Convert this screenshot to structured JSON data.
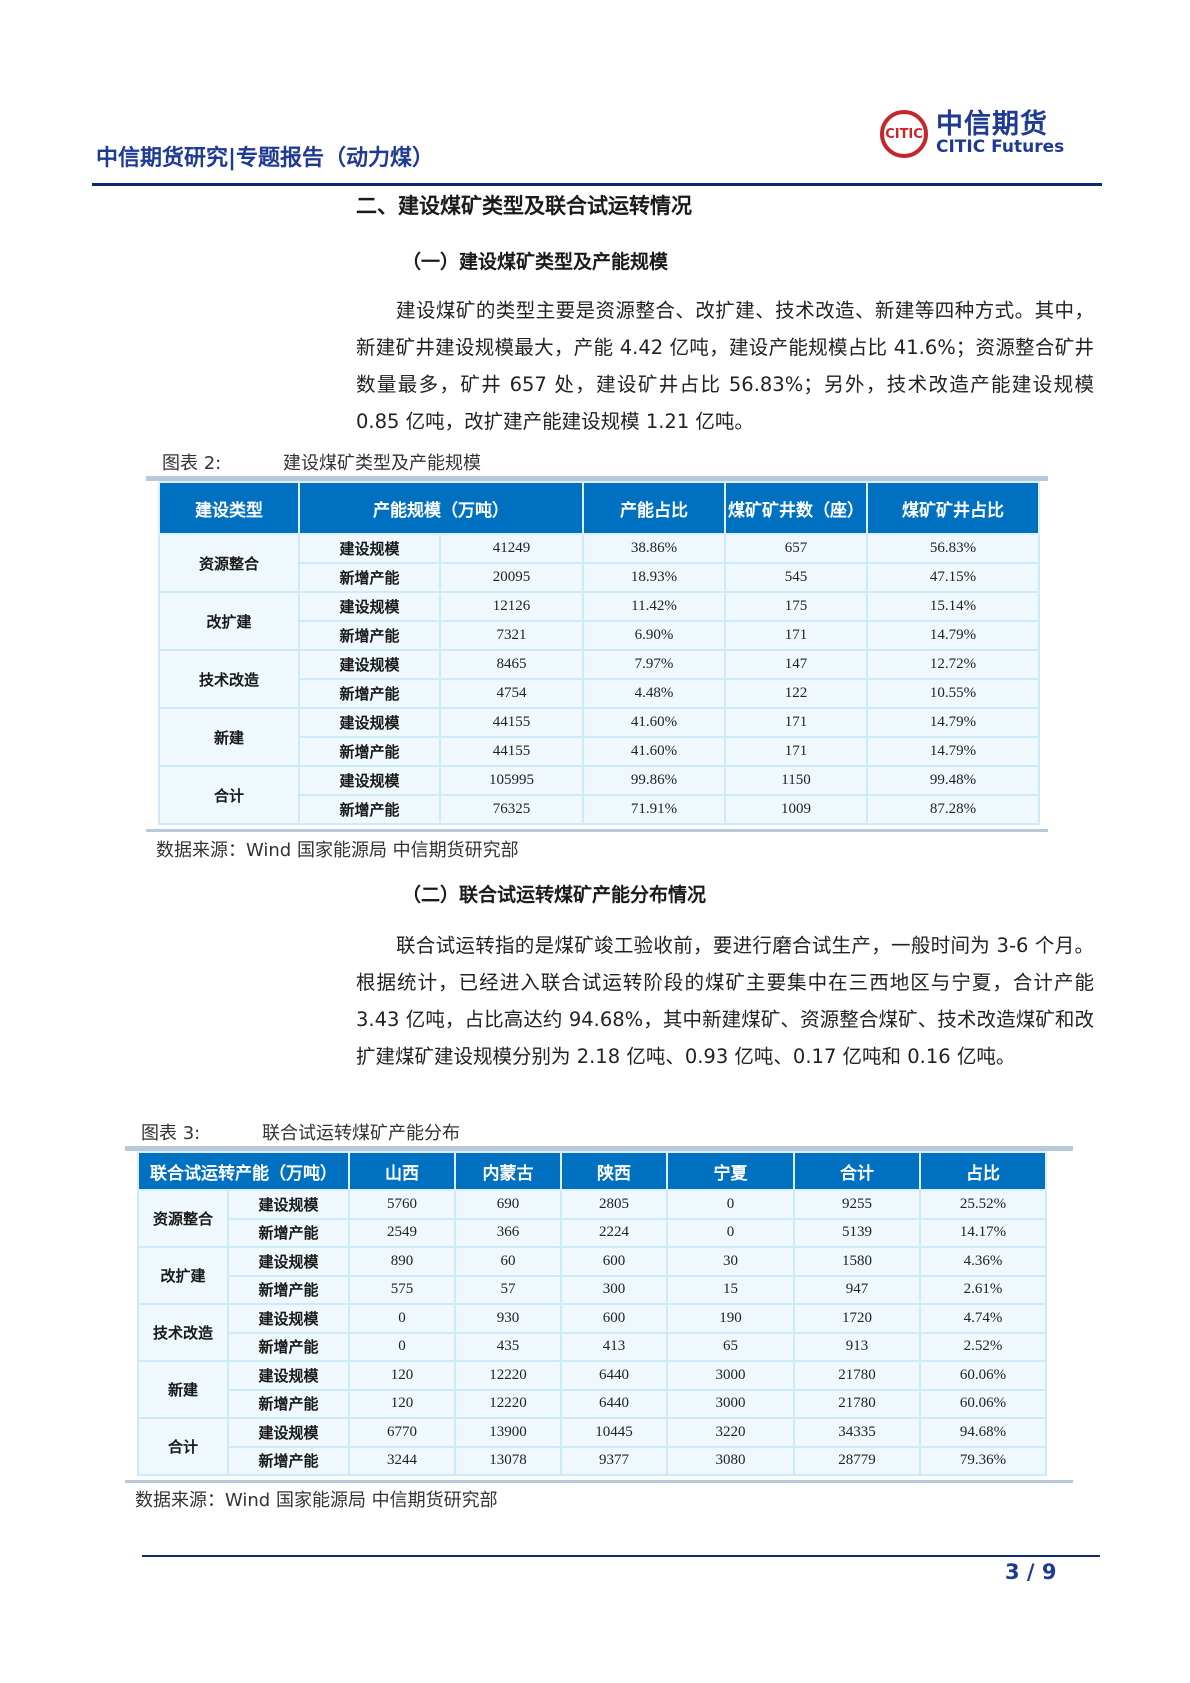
{
  "header": {
    "title": "中信期货研究|专题报告（动力煤）",
    "logo_cn": "中信期货",
    "logo_en": "CITIC Futures"
  },
  "section_title": "二、建设煤矿类型及联合试运转情况",
  "sub1": {
    "title": "（一）建设煤矿类型及产能规模",
    "para": "建设煤矿的类型主要是资源整合、改扩建、技术改造、新建等四种方式。其中，新建矿井建设规模最大，产能 4.42 亿吨，建设产能规模占比 41.6%；资源整合矿井数量最多，矿井 657 处，建设矿井占比 56.83%；另外，技术改造产能建设规模 0.85 亿吨，改扩建产能建设规模 1.21 亿吨。"
  },
  "table1": {
    "caption_no": "图表 2:",
    "caption": "建设煤矿类型及产能规模",
    "headers": [
      "建设类型",
      "产能规模（万吨）",
      "产能占比",
      "煤矿矿井数（座）",
      "煤矿矿井占比"
    ],
    "groups": [
      {
        "name": "资源整合",
        "rows": [
          [
            "建设规模",
            "41249",
            "38.86%",
            "657",
            "56.83%"
          ],
          [
            "新增产能",
            "20095",
            "18.93%",
            "545",
            "47.15%"
          ]
        ]
      },
      {
        "name": "改扩建",
        "rows": [
          [
            "建设规模",
            "12126",
            "11.42%",
            "175",
            "15.14%"
          ],
          [
            "新增产能",
            "7321",
            "6.90%",
            "171",
            "14.79%"
          ]
        ]
      },
      {
        "name": "技术改造",
        "rows": [
          [
            "建设规模",
            "8465",
            "7.97%",
            "147",
            "12.72%"
          ],
          [
            "新增产能",
            "4754",
            "4.48%",
            "122",
            "10.55%"
          ]
        ]
      },
      {
        "name": "新建",
        "rows": [
          [
            "建设规模",
            "44155",
            "41.60%",
            "171",
            "14.79%"
          ],
          [
            "新增产能",
            "44155",
            "41.60%",
            "171",
            "14.79%"
          ]
        ]
      },
      {
        "name": "合计",
        "rows": [
          [
            "建设规模",
            "105995",
            "99.86%",
            "1150",
            "99.48%"
          ],
          [
            "新增产能",
            "76325",
            "71.91%",
            "1009",
            "87.28%"
          ]
        ]
      }
    ],
    "source": "数据来源：Wind  国家能源局  中信期货研究部"
  },
  "sub2": {
    "title": "（二）联合试运转煤矿产能分布情况",
    "para": "联合试运转指的是煤矿竣工验收前，要进行磨合试生产，一般时间为 3-6 个月。根据统计，已经进入联合试运转阶段的煤矿主要集中在三西地区与宁夏，合计产能 3.43 亿吨，占比高达约 94.68%，其中新建煤矿、资源整合煤矿、技术改造煤矿和改扩建煤矿建设规模分别为 2.18 亿吨、0.93 亿吨、0.17 亿吨和 0.16 亿吨。"
  },
  "table2": {
    "caption_no": "图表 3:",
    "caption": "联合试运转煤矿产能分布",
    "headers": [
      "联合试运转产能（万吨）",
      "山西",
      "内蒙古",
      "陕西",
      "宁夏",
      "合计",
      "占比"
    ],
    "groups": [
      {
        "name": "资源整合",
        "rows": [
          [
            "建设规模",
            "5760",
            "690",
            "2805",
            "0",
            "9255",
            "25.52%"
          ],
          [
            "新增产能",
            "2549",
            "366",
            "2224",
            "0",
            "5139",
            "14.17%"
          ]
        ]
      },
      {
        "name": "改扩建",
        "rows": [
          [
            "建设规模",
            "890",
            "60",
            "600",
            "30",
            "1580",
            "4.36%"
          ],
          [
            "新增产能",
            "575",
            "57",
            "300",
            "15",
            "947",
            "2.61%"
          ]
        ]
      },
      {
        "name": "技术改造",
        "rows": [
          [
            "建设规模",
            "0",
            "930",
            "600",
            "190",
            "1720",
            "4.74%"
          ],
          [
            "新增产能",
            "0",
            "435",
            "413",
            "65",
            "913",
            "2.52%"
          ]
        ]
      },
      {
        "name": "新建",
        "rows": [
          [
            "建设规模",
            "120",
            "12220",
            "6440",
            "3000",
            "21780",
            "60.06%"
          ],
          [
            "新增产能",
            "120",
            "12220",
            "6440",
            "3000",
            "21780",
            "60.06%"
          ]
        ]
      },
      {
        "name": "合计",
        "rows": [
          [
            "建设规模",
            "6770",
            "13900",
            "10445",
            "3220",
            "34335",
            "94.68%"
          ],
          [
            "新增产能",
            "3244",
            "13078",
            "9377",
            "3080",
            "28779",
            "79.36%"
          ]
        ]
      }
    ],
    "source": "数据来源：Wind  国家能源局  中信期货研究部"
  },
  "footer": {
    "page": "3 / 9"
  },
  "colors": {
    "header_fill": "#0070C0",
    "cell_fill": "#EEF8FD",
    "brand_blue": "#1F3A93",
    "brand_red": "#C8262C"
  }
}
